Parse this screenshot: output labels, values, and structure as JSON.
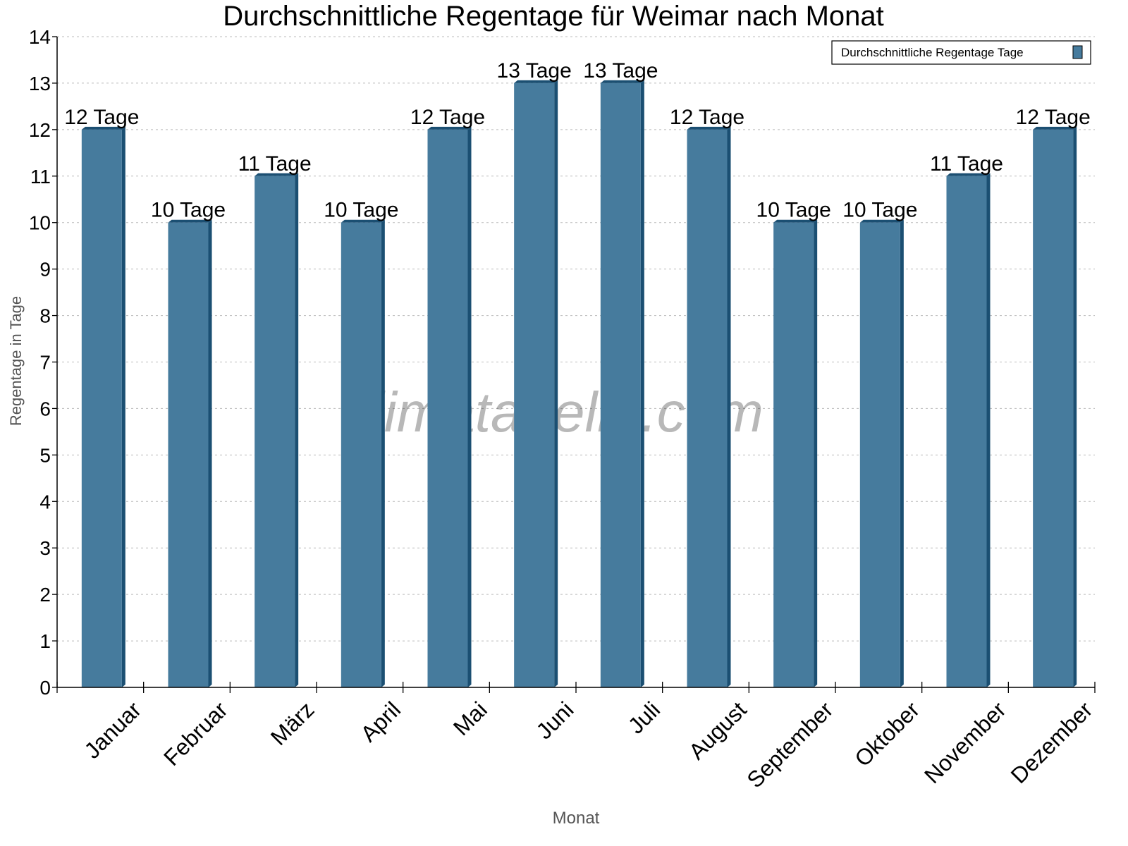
{
  "chart_data": {
    "type": "bar",
    "title": "Durchschnittliche Regentage für Weimar nach Monat",
    "xlabel": "Monat",
    "ylabel": "Regentage in Tage",
    "ylim": [
      0,
      14
    ],
    "yticks": [
      0,
      1,
      2,
      3,
      4,
      5,
      6,
      7,
      8,
      9,
      10,
      11,
      12,
      13,
      14
    ],
    "grid": true,
    "legend_placement": "top-right",
    "categories": [
      "Januar",
      "Februar",
      "März",
      "April",
      "Mai",
      "Juni",
      "Juli",
      "August",
      "September",
      "Oktober",
      "November",
      "Dezember"
    ],
    "series": [
      {
        "name": "Durchschnittliche Regentage Tage",
        "values": [
          12,
          10,
          11,
          10,
          12,
          13,
          13,
          12,
          10,
          10,
          11,
          12
        ],
        "color": "#467b9d",
        "side_color": "#1b4f72"
      }
    ],
    "data_labels": [
      "12 Tage",
      "10 Tage",
      "11 Tage",
      "10 Tage",
      "12 Tage",
      "13 Tage",
      "13 Tage",
      "12 Tage",
      "10 Tage",
      "10 Tage",
      "11 Tage",
      "12 Tage"
    ],
    "watermark": "klimatabelle.com"
  }
}
